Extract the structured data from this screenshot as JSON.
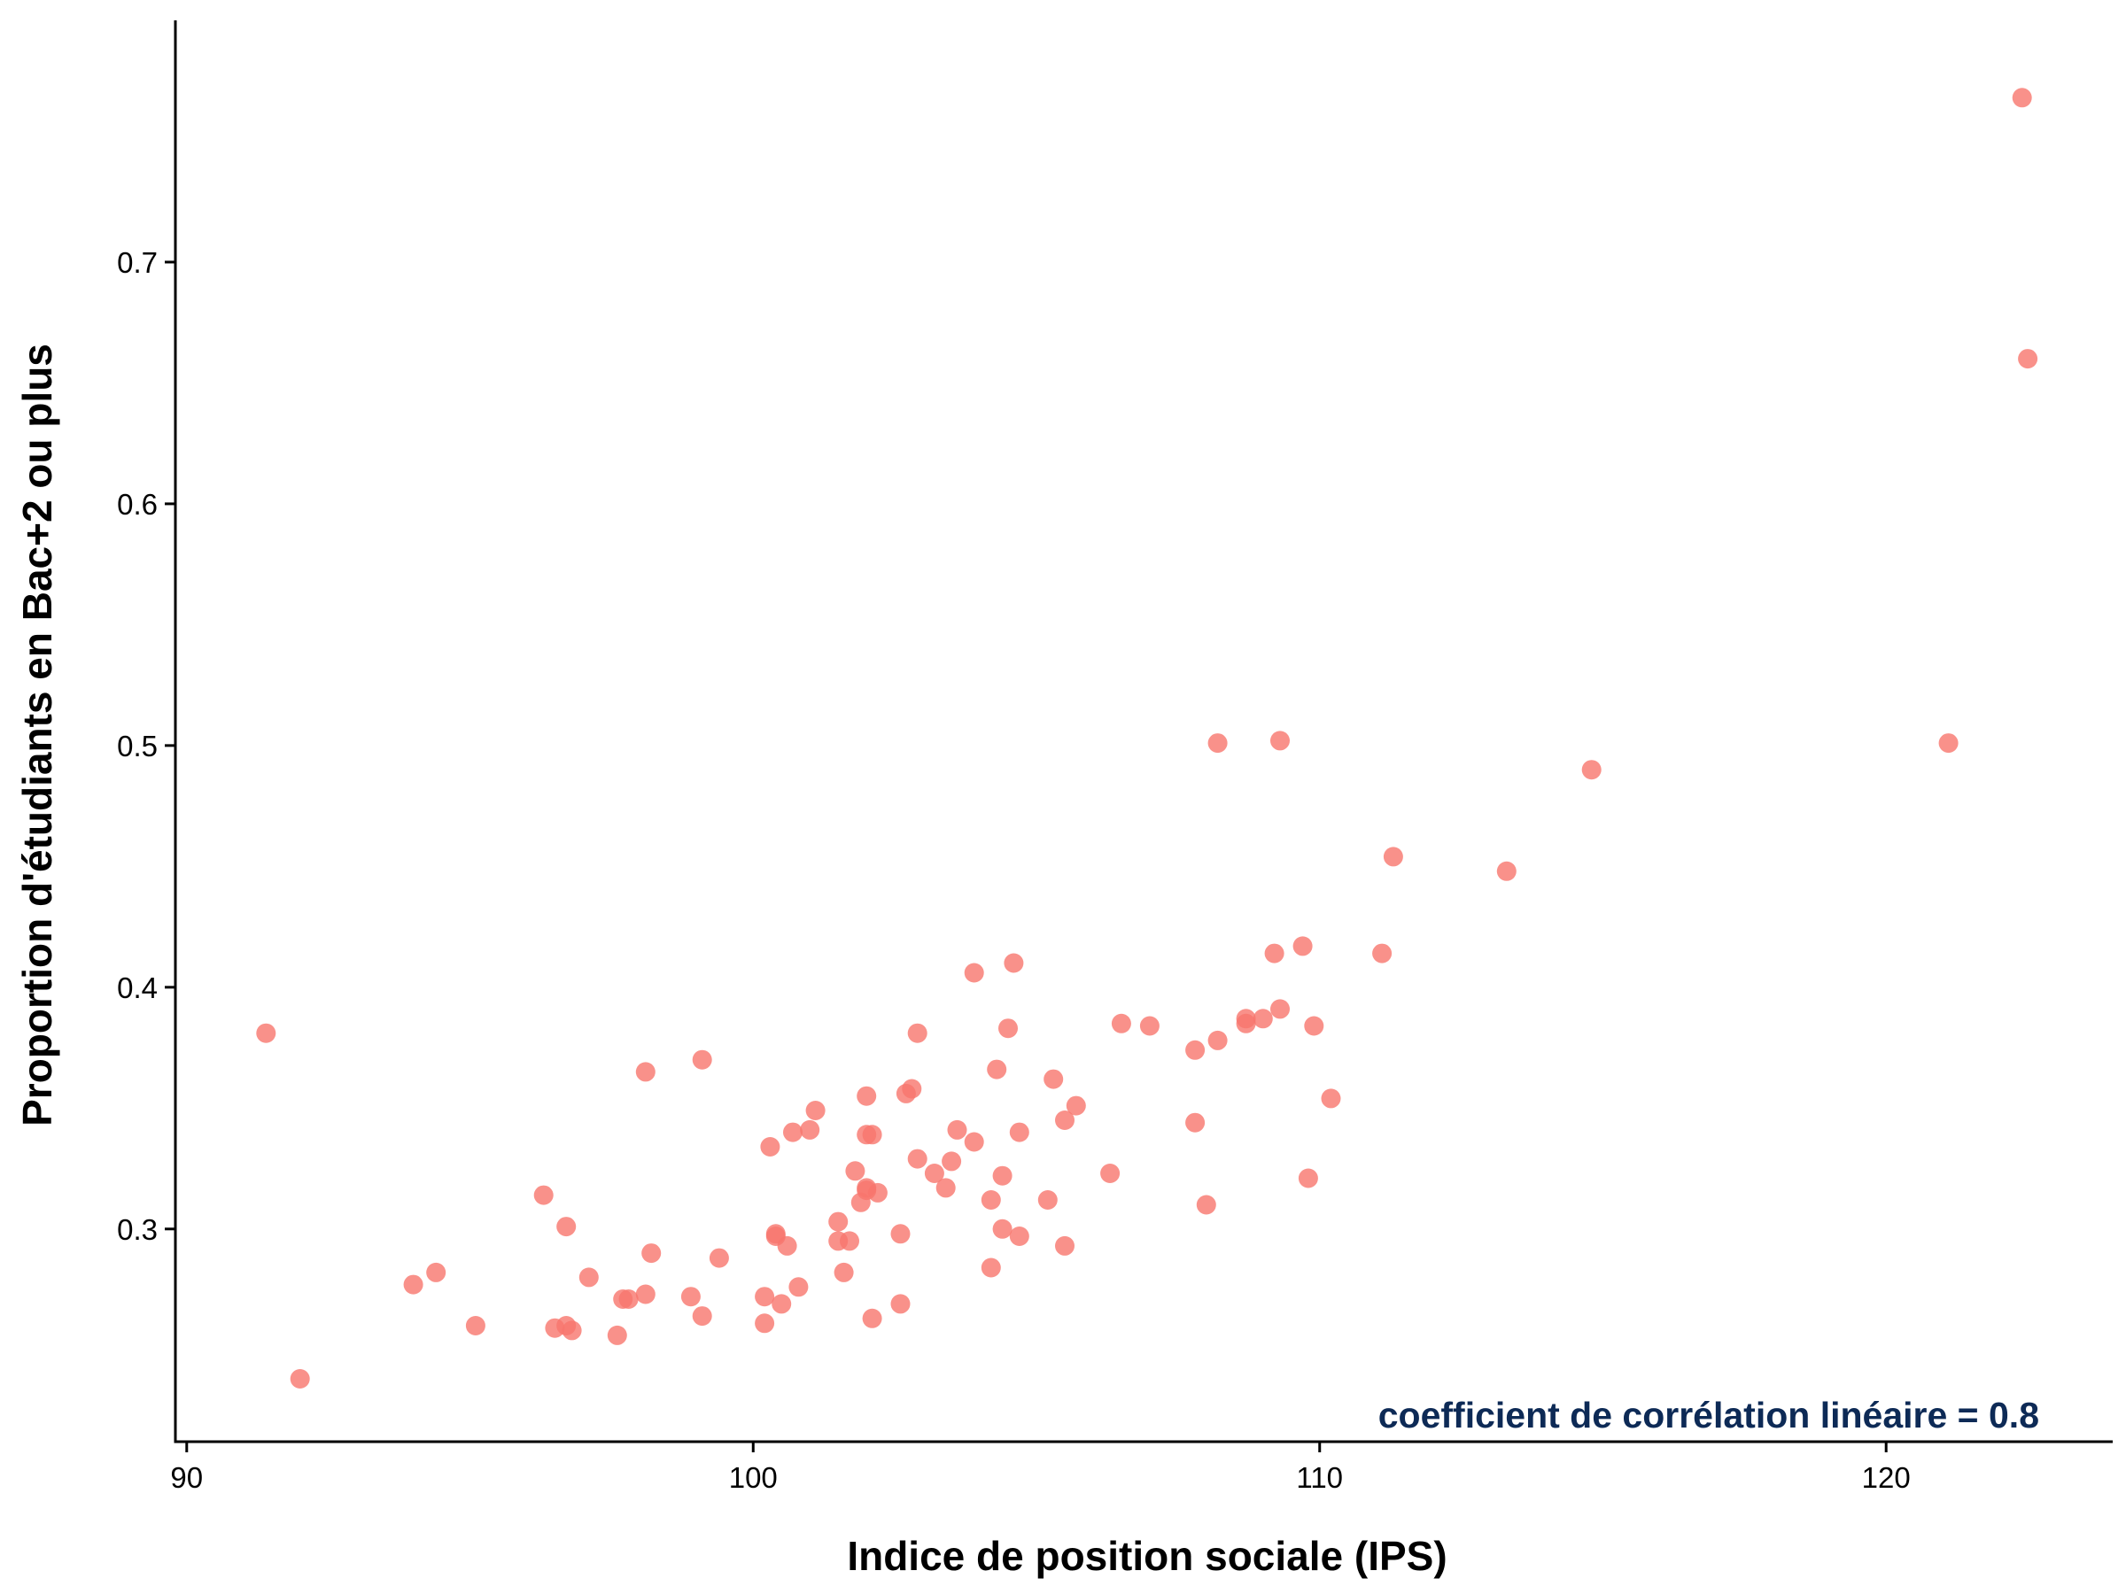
{
  "chart_data": {
    "type": "scatter",
    "xlabel": "Indice de position sociale (IPS)",
    "ylabel": "Proportion d'étudiants en Bac+2 ou plus",
    "xlim": [
      89.8,
      124.0
    ],
    "ylim": [
      0.212,
      0.8
    ],
    "xticks": [
      90,
      100,
      110,
      120
    ],
    "yticks": [
      0.3,
      0.4,
      0.5,
      0.6,
      0.7
    ],
    "xtick_labels": [
      "90",
      "100",
      "110",
      "120"
    ],
    "ytick_labels": [
      "0.3",
      "0.4",
      "0.5",
      "0.6",
      "0.7"
    ],
    "grid": false,
    "legend": "none",
    "point_color": "#f8766d",
    "point_opacity": 0.8,
    "annotation": {
      "text": "coefficient de corrélation linéaire = 0.8",
      "color": "#0d2a56",
      "position": "bottom-right"
    },
    "points": [
      [
        91.4,
        0.381
      ],
      [
        92.0,
        0.238
      ],
      [
        94.0,
        0.277
      ],
      [
        94.4,
        0.282
      ],
      [
        95.1,
        0.26
      ],
      [
        96.3,
        0.314
      ],
      [
        96.5,
        0.259
      ],
      [
        96.7,
        0.301
      ],
      [
        96.7,
        0.26
      ],
      [
        96.8,
        0.258
      ],
      [
        97.1,
        0.28
      ],
      [
        97.6,
        0.256
      ],
      [
        97.7,
        0.271
      ],
      [
        97.8,
        0.271
      ],
      [
        98.1,
        0.273
      ],
      [
        98.1,
        0.365
      ],
      [
        98.2,
        0.29
      ],
      [
        98.9,
        0.272
      ],
      [
        99.1,
        0.264
      ],
      [
        99.1,
        0.37
      ],
      [
        99.4,
        0.288
      ],
      [
        100.2,
        0.272
      ],
      [
        100.2,
        0.261
      ],
      [
        100.3,
        0.334
      ],
      [
        100.4,
        0.297
      ],
      [
        100.4,
        0.298
      ],
      [
        100.5,
        0.269
      ],
      [
        100.6,
        0.293
      ],
      [
        100.7,
        0.34
      ],
      [
        100.8,
        0.276
      ],
      [
        101.0,
        0.341
      ],
      [
        101.1,
        0.349
      ],
      [
        101.5,
        0.303
      ],
      [
        101.5,
        0.295
      ],
      [
        101.6,
        0.282
      ],
      [
        101.7,
        0.295
      ],
      [
        101.8,
        0.324
      ],
      [
        101.9,
        0.311
      ],
      [
        102.0,
        0.317
      ],
      [
        102.0,
        0.316
      ],
      [
        102.0,
        0.339
      ],
      [
        102.0,
        0.355
      ],
      [
        102.1,
        0.339
      ],
      [
        102.1,
        0.263
      ],
      [
        102.2,
        0.315
      ],
      [
        102.6,
        0.298
      ],
      [
        102.6,
        0.269
      ],
      [
        102.7,
        0.356
      ],
      [
        102.8,
        0.358
      ],
      [
        102.9,
        0.329
      ],
      [
        102.9,
        0.381
      ],
      [
        103.2,
        0.323
      ],
      [
        103.4,
        0.317
      ],
      [
        103.5,
        0.328
      ],
      [
        103.6,
        0.341
      ],
      [
        103.9,
        0.406
      ],
      [
        103.9,
        0.336
      ],
      [
        104.2,
        0.284
      ],
      [
        104.2,
        0.312
      ],
      [
        104.3,
        0.366
      ],
      [
        104.4,
        0.3
      ],
      [
        104.4,
        0.322
      ],
      [
        104.5,
        0.383
      ],
      [
        104.6,
        0.41
      ],
      [
        104.7,
        0.34
      ],
      [
        104.7,
        0.297
      ],
      [
        105.2,
        0.312
      ],
      [
        105.3,
        0.362
      ],
      [
        105.5,
        0.345
      ],
      [
        105.5,
        0.293
      ],
      [
        105.7,
        0.351
      ],
      [
        106.3,
        0.323
      ],
      [
        106.5,
        0.385
      ],
      [
        107.0,
        0.384
      ],
      [
        107.8,
        0.344
      ],
      [
        107.8,
        0.374
      ],
      [
        108.0,
        0.31
      ],
      [
        108.2,
        0.378
      ],
      [
        108.2,
        0.501
      ],
      [
        108.7,
        0.387
      ],
      [
        108.7,
        0.385
      ],
      [
        109.0,
        0.387
      ],
      [
        109.2,
        0.414
      ],
      [
        109.3,
        0.502
      ],
      [
        109.3,
        0.391
      ],
      [
        109.7,
        0.417
      ],
      [
        109.8,
        0.321
      ],
      [
        109.9,
        0.384
      ],
      [
        110.2,
        0.354
      ],
      [
        111.1,
        0.414
      ],
      [
        111.3,
        0.454
      ],
      [
        113.3,
        0.448
      ],
      [
        114.8,
        0.49
      ],
      [
        121.1,
        0.501
      ],
      [
        122.4,
        0.768
      ],
      [
        122.5,
        0.66
      ]
    ]
  }
}
